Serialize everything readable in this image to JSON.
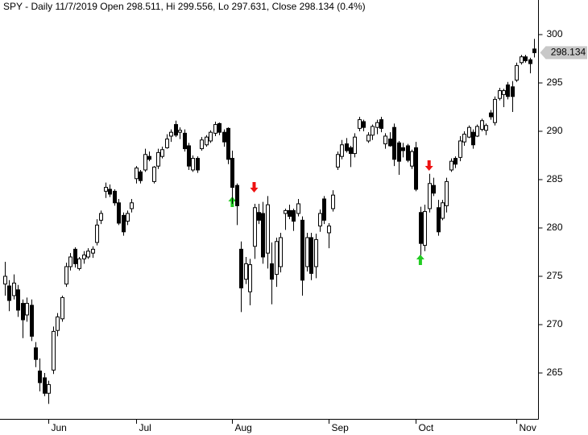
{
  "chart_data": {
    "type": "candlestick",
    "title": "SPY - Daily 11/7/2019 Open 298.511, Hi 299.556, Lo 297.631, Close 298.134 (0.4%)",
    "categories": [
      null,
      null,
      null,
      null,
      null,
      null,
      null,
      null,
      null,
      null,
      "Jun",
      null,
      null,
      null,
      null,
      null,
      null,
      null,
      null,
      null,
      null,
      null,
      null,
      null,
      null,
      null,
      null,
      null,
      null,
      null,
      "Jul",
      null,
      null,
      null,
      null,
      null,
      null,
      null,
      null,
      null,
      null,
      null,
      null,
      null,
      null,
      null,
      null,
      null,
      null,
      null,
      null,
      null,
      "Aug",
      null,
      null,
      null,
      null,
      null,
      null,
      null,
      null,
      null,
      null,
      null,
      null,
      null,
      null,
      null,
      null,
      null,
      null,
      null,
      null,
      null,
      "Sep",
      null,
      null,
      null,
      null,
      null,
      null,
      null,
      null,
      null,
      null,
      null,
      null,
      null,
      null,
      null,
      null,
      null,
      null,
      null,
      "Oct",
      null,
      null,
      null,
      null,
      null,
      null,
      null,
      null,
      null,
      null,
      null,
      null,
      null,
      null,
      null,
      null,
      null,
      null,
      null,
      null,
      null,
      null,
      "Nov",
      null,
      null,
      null,
      null
    ],
    "open": [
      274.2,
      274.0,
      273.0,
      273.6,
      272.2,
      271.0,
      272.0,
      267.6,
      265.2,
      264.5,
      262.9,
      265.3,
      269.4,
      270.6,
      274.2,
      276.0,
      277.8,
      275.8,
      276.8,
      277.0,
      277.4,
      278.5,
      280.8,
      283.8,
      284.0,
      283.8,
      282.6,
      281.3,
      280.7,
      282.0,
      285.1,
      285.8,
      286.0,
      287.4,
      284.8,
      286.4,
      287.4,
      288.3,
      289.5,
      290.7,
      289.9,
      289.8,
      288.5,
      286.0,
      287.2,
      288.2,
      288.6,
      289.0,
      289.8,
      290.8,
      289.9,
      290.3,
      287.2,
      284.4,
      277.8,
      274.7,
      273.4,
      278.1,
      281.6,
      281.5,
      277.4,
      276.3,
      275.2,
      276.0,
      281.5,
      281.8,
      281.8,
      281.5,
      280.8,
      276.0,
      279.0,
      276.0,
      280.2,
      283.0,
      279.5,
      282.0,
      286.3,
      287.4,
      288.7,
      288.3,
      287.7,
      290.3,
      291.0,
      289.0,
      289.6,
      290.4,
      291.2,
      288.7,
      289.2,
      290.4,
      288.8,
      288.3,
      288.5,
      286.4,
      288.3,
      281.6,
      278.2,
      282.0,
      284.4,
      282.1,
      281.0,
      282.3,
      286.0,
      287.2,
      287.3,
      288.9,
      289.4,
      289.9,
      289.5,
      290.2,
      290.1,
      291.9,
      290.9,
      293.4,
      293.8,
      294.8,
      294.6,
      295.3,
      297.1,
      297.7,
      297.4,
      298.511
    ],
    "high": [
      276.5,
      274.6,
      275.2,
      274.1,
      272.6,
      272.8,
      272.6,
      268.2,
      266.5,
      265.0,
      264.2,
      269.8,
      271.2,
      273.0,
      276.4,
      277.4,
      278.0,
      277.0,
      277.6,
      277.9,
      278.1,
      280.9,
      281.8,
      284.7,
      284.5,
      284.0,
      283.0,
      281.6,
      281.8,
      283.0,
      286.4,
      286.0,
      288.2,
      287.9,
      286.4,
      288.2,
      288.4,
      289.7,
      290.2,
      291.1,
      290.4,
      290.2,
      288.8,
      287.5,
      287.4,
      289.4,
      289.6,
      290.1,
      291.0,
      290.9,
      290.2,
      290.4,
      288.0,
      284.6,
      278.6,
      277.0,
      276.8,
      282.5,
      282.5,
      282.7,
      283.3,
      278.5,
      279.0,
      279.5,
      282.0,
      282.4,
      282.0,
      283.0,
      281.2,
      279.5,
      279.5,
      279.4,
      281.9,
      283.3,
      280.5,
      283.9,
      287.9,
      289.1,
      289.3,
      288.5,
      289.8,
      291.5,
      291.2,
      289.9,
      290.7,
      291.2,
      291.5,
      289.8,
      289.9,
      290.8,
      289.0,
      288.8,
      288.7,
      288.1,
      288.9,
      282.2,
      282.4,
      285.6,
      285.2,
      282.9,
      282.9,
      285.2,
      287.2,
      287.4,
      289.5,
      290.0,
      290.6,
      290.2,
      290.7,
      291.3,
      290.8,
      292.2,
      293.6,
      294.5,
      294.4,
      295.1,
      295.2,
      297.1,
      297.9,
      297.9,
      297.6,
      299.556
    ],
    "low": [
      273.0,
      271.4,
      272.6,
      270.8,
      268.6,
      270.3,
      268.3,
      265.6,
      263.1,
      262.6,
      261.8,
      264.9,
      268.8,
      270.3,
      273.9,
      275.6,
      275.9,
      275.6,
      276.3,
      276.8,
      276.9,
      278.2,
      280.4,
      283.1,
      283.2,
      282.3,
      280.3,
      279.2,
      280.3,
      281.6,
      284.6,
      284.6,
      285.8,
      286.9,
      284.6,
      286.1,
      287.2,
      288.2,
      288.9,
      289.4,
      289.2,
      287.9,
      286.0,
      285.8,
      285.7,
      288.0,
      288.4,
      288.8,
      289.5,
      289.6,
      288.4,
      286.6,
      282.5,
      280.3,
      271.3,
      274.2,
      272.0,
      276.8,
      280.4,
      276.3,
      275.8,
      272.1,
      273.9,
      275.4,
      279.8,
      280.9,
      279.7,
      281.2,
      273.0,
      275.5,
      274.6,
      274.8,
      279.6,
      280.4,
      277.9,
      281.7,
      286.0,
      287.1,
      287.8,
      286.3,
      287.3,
      290.0,
      290.0,
      288.8,
      289.1,
      289.7,
      289.9,
      288.2,
      288.4,
      286.4,
      285.5,
      287.3,
      286.8,
      286.1,
      283.8,
      277.2,
      277.6,
      281.6,
      283.3,
      279.2,
      280.8,
      281.6,
      285.8,
      286.2,
      286.9,
      288.5,
      289.3,
      288.2,
      289.4,
      290.0,
      289.6,
      291.2,
      290.6,
      293.2,
      292.5,
      293.3,
      292.0,
      295.1,
      296.9,
      297.1,
      296.0,
      297.631
    ],
    "close": [
      275.0,
      272.5,
      274.3,
      271.5,
      270.5,
      272.2,
      268.8,
      266.4,
      264.0,
      262.9,
      263.8,
      269.3,
      270.8,
      272.8,
      276.0,
      277.0,
      276.3,
      276.8,
      277.2,
      277.6,
      277.8,
      280.3,
      281.5,
      284.2,
      283.5,
      282.6,
      280.5,
      279.6,
      281.5,
      282.6,
      286.2,
      284.9,
      287.6,
      287.1,
      286.3,
      287.8,
      288.1,
      289.2,
      289.9,
      289.6,
      290.1,
      288.2,
      286.4,
      287.2,
      286.0,
      289.1,
      289.4,
      289.9,
      290.7,
      289.9,
      288.9,
      287.1,
      284.2,
      282.3,
      273.8,
      276.3,
      276.2,
      282.1,
      280.8,
      277.0,
      282.4,
      274.7,
      278.6,
      279.0,
      281.8,
      281.2,
      280.7,
      282.5,
      274.6,
      279.0,
      275.3,
      278.8,
      281.5,
      280.8,
      280.2,
      283.4,
      287.6,
      288.6,
      288.0,
      287.7,
      289.4,
      291.2,
      290.4,
      289.6,
      290.5,
      290.9,
      290.3,
      289.5,
      288.5,
      287.1,
      286.9,
      288.0,
      287.0,
      287.9,
      284.0,
      278.4,
      281.7,
      284.6,
      283.6,
      279.6,
      282.6,
      284.8,
      286.9,
      286.6,
      289.0,
      289.7,
      290.4,
      288.6,
      290.5,
      291.1,
      290.6,
      291.5,
      293.3,
      294.2,
      294.2,
      293.6,
      293.6,
      296.8,
      297.7,
      297.3,
      297.0,
      298.134
    ],
    "ylim": [
      260.25,
      303.58
    ],
    "yticks": [
      265,
      270,
      275,
      280,
      285,
      290,
      295,
      300
    ],
    "up_color": "#ffffff",
    "down_color": "#000000",
    "line_color": "#000000"
  }
}
